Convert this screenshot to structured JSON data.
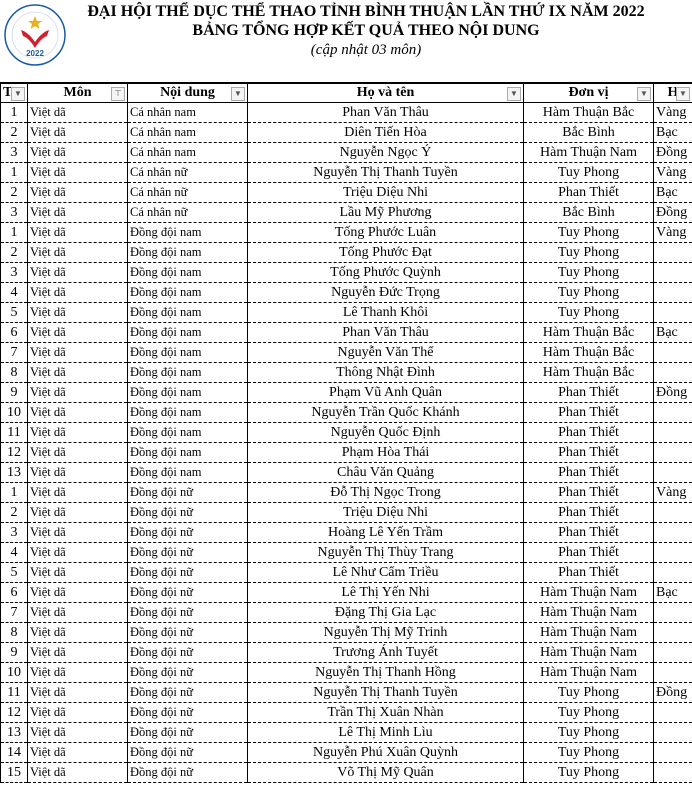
{
  "header": {
    "title": "ĐẠI HỘI THỂ DỤC THỂ THAO TỈNH BÌNH THUẬN LẦN THỨ IX NĂM 2022",
    "subtitle": "BẢNG TỔNG HỢP KẾT QUẢ THEO NỘI DUNG",
    "note": "(cập nhật 03 môn)",
    "logo_text": "ĐẠI HỘI THỂ DỤC THỂ THAO TỈNH BÌNH THUẬN LẦN THỨ IX 2022",
    "logo_year": "2022"
  },
  "colors": {
    "logo_red": "#d2202f",
    "logo_blue": "#1a5aa8",
    "logo_gold": "#e9b21c"
  },
  "columns": [
    {
      "label": "T",
      "filter": "dropdown"
    },
    {
      "label": "Môn",
      "filter": "filtered"
    },
    {
      "label": "Nội dung",
      "filter": "dropdown"
    },
    {
      "label": "Họ và tên",
      "filter": "dropdown"
    },
    {
      "label": "Đơn vị",
      "filter": "dropdown"
    },
    {
      "label": "H",
      "filter": "dropdown"
    }
  ],
  "rows": [
    [
      "1",
      "Việt dã",
      "Cá nhân nam",
      "Phan Văn Thâu",
      "Hàm Thuận Bắc",
      "Vàng"
    ],
    [
      "2",
      "Việt dã",
      "Cá nhân nam",
      "Diên Tiến Hòa",
      "Bắc Bình",
      "Bạc"
    ],
    [
      "3",
      "Việt dã",
      "Cá nhân nam",
      "Nguyễn Ngọc Ý",
      "Hàm Thuận Nam",
      "Đồng"
    ],
    [
      "1",
      "Việt dã",
      "Cá nhân nữ",
      "Nguyễn Thị Thanh Tuyền",
      "Tuy Phong",
      "Vàng"
    ],
    [
      "2",
      "Việt dã",
      "Cá nhân nữ",
      "Triệu Diệu Nhi",
      "Phan Thiết",
      "Bạc"
    ],
    [
      "3",
      "Việt dã",
      "Cá nhân nữ",
      "Lầu Mỹ Phương",
      "Bắc Bình",
      "Đồng"
    ],
    [
      "1",
      "Việt dã",
      "Đồng đội nam",
      "Tống Phước Luân",
      "Tuy Phong",
      "Vàng"
    ],
    [
      "2",
      "Việt dã",
      "Đồng đội nam",
      "Tống Phước Đạt",
      "Tuy Phong",
      ""
    ],
    [
      "3",
      "Việt dã",
      "Đồng đội nam",
      "Tống Phước Quỳnh",
      "Tuy Phong",
      ""
    ],
    [
      "4",
      "Việt dã",
      "Đồng đội nam",
      "Nguyễn Đức Trọng",
      "Tuy Phong",
      ""
    ],
    [
      "5",
      "Việt dã",
      "Đồng đội nam",
      "Lê Thanh Khôi",
      "Tuy Phong",
      ""
    ],
    [
      "6",
      "Việt dã",
      "Đồng đội nam",
      "Phan Văn Thâu",
      "Hàm Thuận Bắc",
      "Bạc"
    ],
    [
      "7",
      "Việt dã",
      "Đồng đội nam",
      "Nguyễn Văn Thể",
      "Hàm Thuận Bắc",
      ""
    ],
    [
      "8",
      "Việt dã",
      "Đồng đội nam",
      "Thông Nhật Đình",
      "Hàm Thuận Bắc",
      ""
    ],
    [
      "9",
      "Việt dã",
      "Đồng đội nam",
      "Phạm Vũ Anh Quân",
      "Phan Thiết",
      "Đồng"
    ],
    [
      "10",
      "Việt dã",
      "Đồng đội nam",
      "Nguyễn Trần Quốc Khánh",
      "Phan Thiết",
      ""
    ],
    [
      "11",
      "Việt dã",
      "Đồng đội nam",
      "Nguyễn Quốc Định",
      "Phan Thiết",
      ""
    ],
    [
      "12",
      "Việt dã",
      "Đồng đội nam",
      "Phạm Hòa Thái",
      "Phan Thiết",
      ""
    ],
    [
      "13",
      "Việt dã",
      "Đồng đội nam",
      "Châu Văn Quảng",
      "Phan Thiết",
      ""
    ],
    [
      "1",
      "Việt dã",
      "Đồng đội nữ",
      "Đỗ Thị Ngọc Trong",
      "Phan Thiết",
      "Vàng"
    ],
    [
      "2",
      "Việt dã",
      "Đồng đội nữ",
      "Triệu Diệu Nhi",
      "Phan Thiết",
      ""
    ],
    [
      "3",
      "Việt dã",
      "Đồng đội nữ",
      "Hoàng Lê Yến Trầm",
      "Phan Thiết",
      ""
    ],
    [
      "4",
      "Việt dã",
      "Đồng đội nữ",
      "Nguyễn Thị Thùy Trang",
      "Phan Thiết",
      ""
    ],
    [
      "5",
      "Việt dã",
      "Đồng đội nữ",
      "Lê Như Cẩm Triều",
      "Phan Thiết",
      ""
    ],
    [
      "6",
      "Việt dã",
      "Đồng đội nữ",
      "Lê Thị Yến Nhi",
      "Hàm Thuận Nam",
      "Bạc"
    ],
    [
      "7",
      "Việt dã",
      "Đồng đội nữ",
      "Đặng Thị Gia Lạc",
      "Hàm Thuận Nam",
      ""
    ],
    [
      "8",
      "Việt dã",
      "Đồng đội nữ",
      "Nguyễn Thị Mỹ Trinh",
      "Hàm Thuận Nam",
      ""
    ],
    [
      "9",
      "Việt dã",
      "Đồng đội nữ",
      "Trương Ánh Tuyết",
      "Hàm Thuận Nam",
      ""
    ],
    [
      "10",
      "Việt dã",
      "Đồng đội nữ",
      "Nguyễn Thị Thanh Hồng",
      "Hàm Thuận Nam",
      ""
    ],
    [
      "11",
      "Việt dã",
      "Đồng đội nữ",
      "Nguyễn Thị Thanh Tuyền",
      "Tuy Phong",
      "Đồng"
    ],
    [
      "12",
      "Việt dã",
      "Đồng đội nữ",
      "Trần Thị Xuân Nhàn",
      "Tuy Phong",
      ""
    ],
    [
      "13",
      "Việt dã",
      "Đồng đội nữ",
      "Lê Thị Minh Lìu",
      "Tuy Phong",
      ""
    ],
    [
      "14",
      "Việt dã",
      "Đồng đội nữ",
      "Nguyễn Phú Xuân Quỳnh",
      "Tuy Phong",
      ""
    ],
    [
      "15",
      "Việt dã",
      "Đồng đội nữ",
      "Võ Thị Mỹ Quân",
      "Tuy Phong",
      ""
    ]
  ]
}
